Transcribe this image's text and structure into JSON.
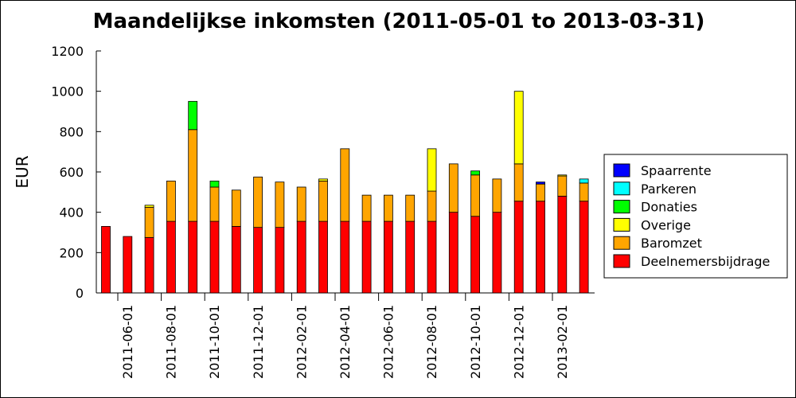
{
  "chart_data": {
    "type": "bar",
    "stacked": true,
    "title": "Maandelijkse inkomsten (2011-05-01 to 2013-03-31)",
    "xlabel": "",
    "ylabel": "EUR",
    "ylim": [
      0,
      1200
    ],
    "yticks": [
      0,
      200,
      400,
      600,
      800,
      1000,
      1200
    ],
    "grid": false,
    "legend_position": "right",
    "x_tick_labels": [
      "2011-06-01",
      "2011-08-01",
      "2011-10-01",
      "2011-12-01",
      "2012-02-01",
      "2012-04-01",
      "2012-06-01",
      "2012-08-01",
      "2012-10-01",
      "2012-12-01",
      "2013-02-01"
    ],
    "categories": [
      "2011-05",
      "2011-06",
      "2011-07",
      "2011-08",
      "2011-09",
      "2011-10",
      "2011-11",
      "2011-12",
      "2012-01",
      "2012-02",
      "2012-03",
      "2012-04",
      "2012-05",
      "2012-06",
      "2012-07",
      "2012-08",
      "2012-09",
      "2012-10",
      "2012-11",
      "2012-12",
      "2013-01",
      "2013-02",
      "2013-03"
    ],
    "series": [
      {
        "name": "Deelnemersbijdrage",
        "color": "#ff0000",
        "values": [
          330,
          280,
          275,
          355,
          355,
          355,
          330,
          325,
          325,
          355,
          355,
          355,
          355,
          355,
          355,
          355,
          400,
          380,
          400,
          455,
          455,
          480,
          455
        ]
      },
      {
        "name": "Baromzet",
        "color": "#ffa500",
        "values": [
          0,
          0,
          150,
          200,
          455,
          170,
          180,
          250,
          225,
          170,
          200,
          360,
          130,
          130,
          130,
          150,
          240,
          205,
          165,
          185,
          85,
          100,
          90
        ]
      },
      {
        "name": "Overige",
        "color": "#ffff00",
        "values": [
          0,
          0,
          10,
          0,
          0,
          0,
          0,
          0,
          0,
          0,
          10,
          0,
          0,
          0,
          0,
          210,
          0,
          0,
          0,
          360,
          0,
          5,
          0
        ]
      },
      {
        "name": "Donaties",
        "color": "#00ff00",
        "values": [
          0,
          0,
          0,
          0,
          140,
          30,
          0,
          0,
          0,
          0,
          0,
          0,
          0,
          0,
          0,
          0,
          0,
          20,
          0,
          0,
          0,
          0,
          0
        ]
      },
      {
        "name": "Parkeren",
        "color": "#00ffff",
        "values": [
          0,
          0,
          0,
          0,
          0,
          0,
          0,
          0,
          0,
          0,
          0,
          0,
          0,
          0,
          0,
          0,
          0,
          0,
          0,
          0,
          0,
          0,
          20
        ]
      },
      {
        "name": "Spaarrente",
        "color": "#0000ff",
        "values": [
          0,
          0,
          0,
          0,
          0,
          0,
          0,
          0,
          0,
          0,
          0,
          0,
          0,
          0,
          0,
          0,
          0,
          0,
          0,
          0,
          10,
          0,
          0
        ]
      }
    ],
    "legend_order": [
      "Spaarrente",
      "Parkeren",
      "Donaties",
      "Overige",
      "Baromzet",
      "Deelnemersbijdrage"
    ]
  }
}
